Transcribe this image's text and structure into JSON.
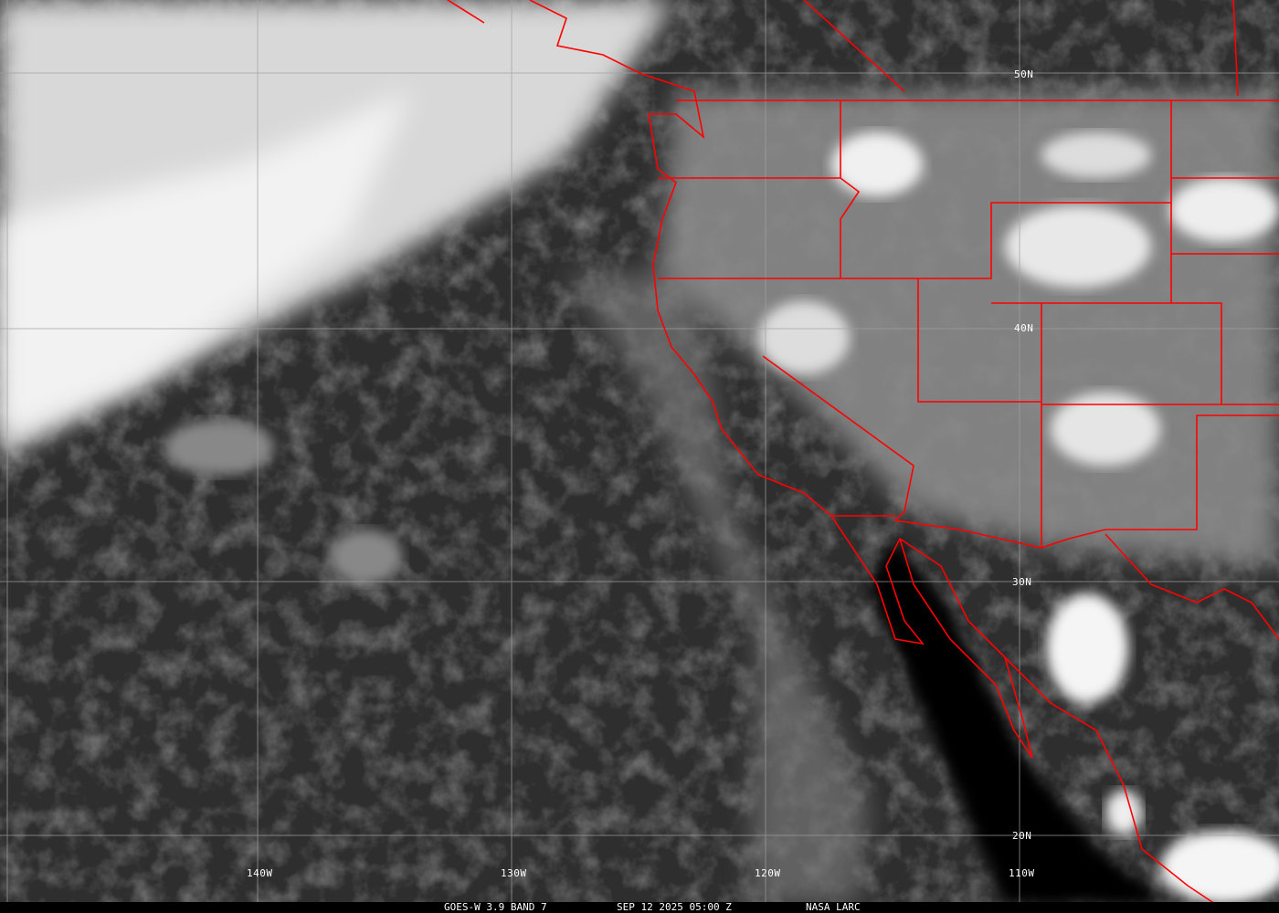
{
  "caption": {
    "satellite_band": "GOES-W 3.9 BAND 7",
    "timestamp": "SEP 12 2025 05:00 Z",
    "source": "NASA LARC"
  },
  "latitude_labels": [
    "50N",
    "40N",
    "30N",
    "20N"
  ],
  "longitude_labels": [
    "140W",
    "130W",
    "120W",
    "110W"
  ],
  "colors": {
    "boundaries": "#ff0000",
    "grid": "#a0a0a0",
    "label_text": "#ffffff"
  }
}
